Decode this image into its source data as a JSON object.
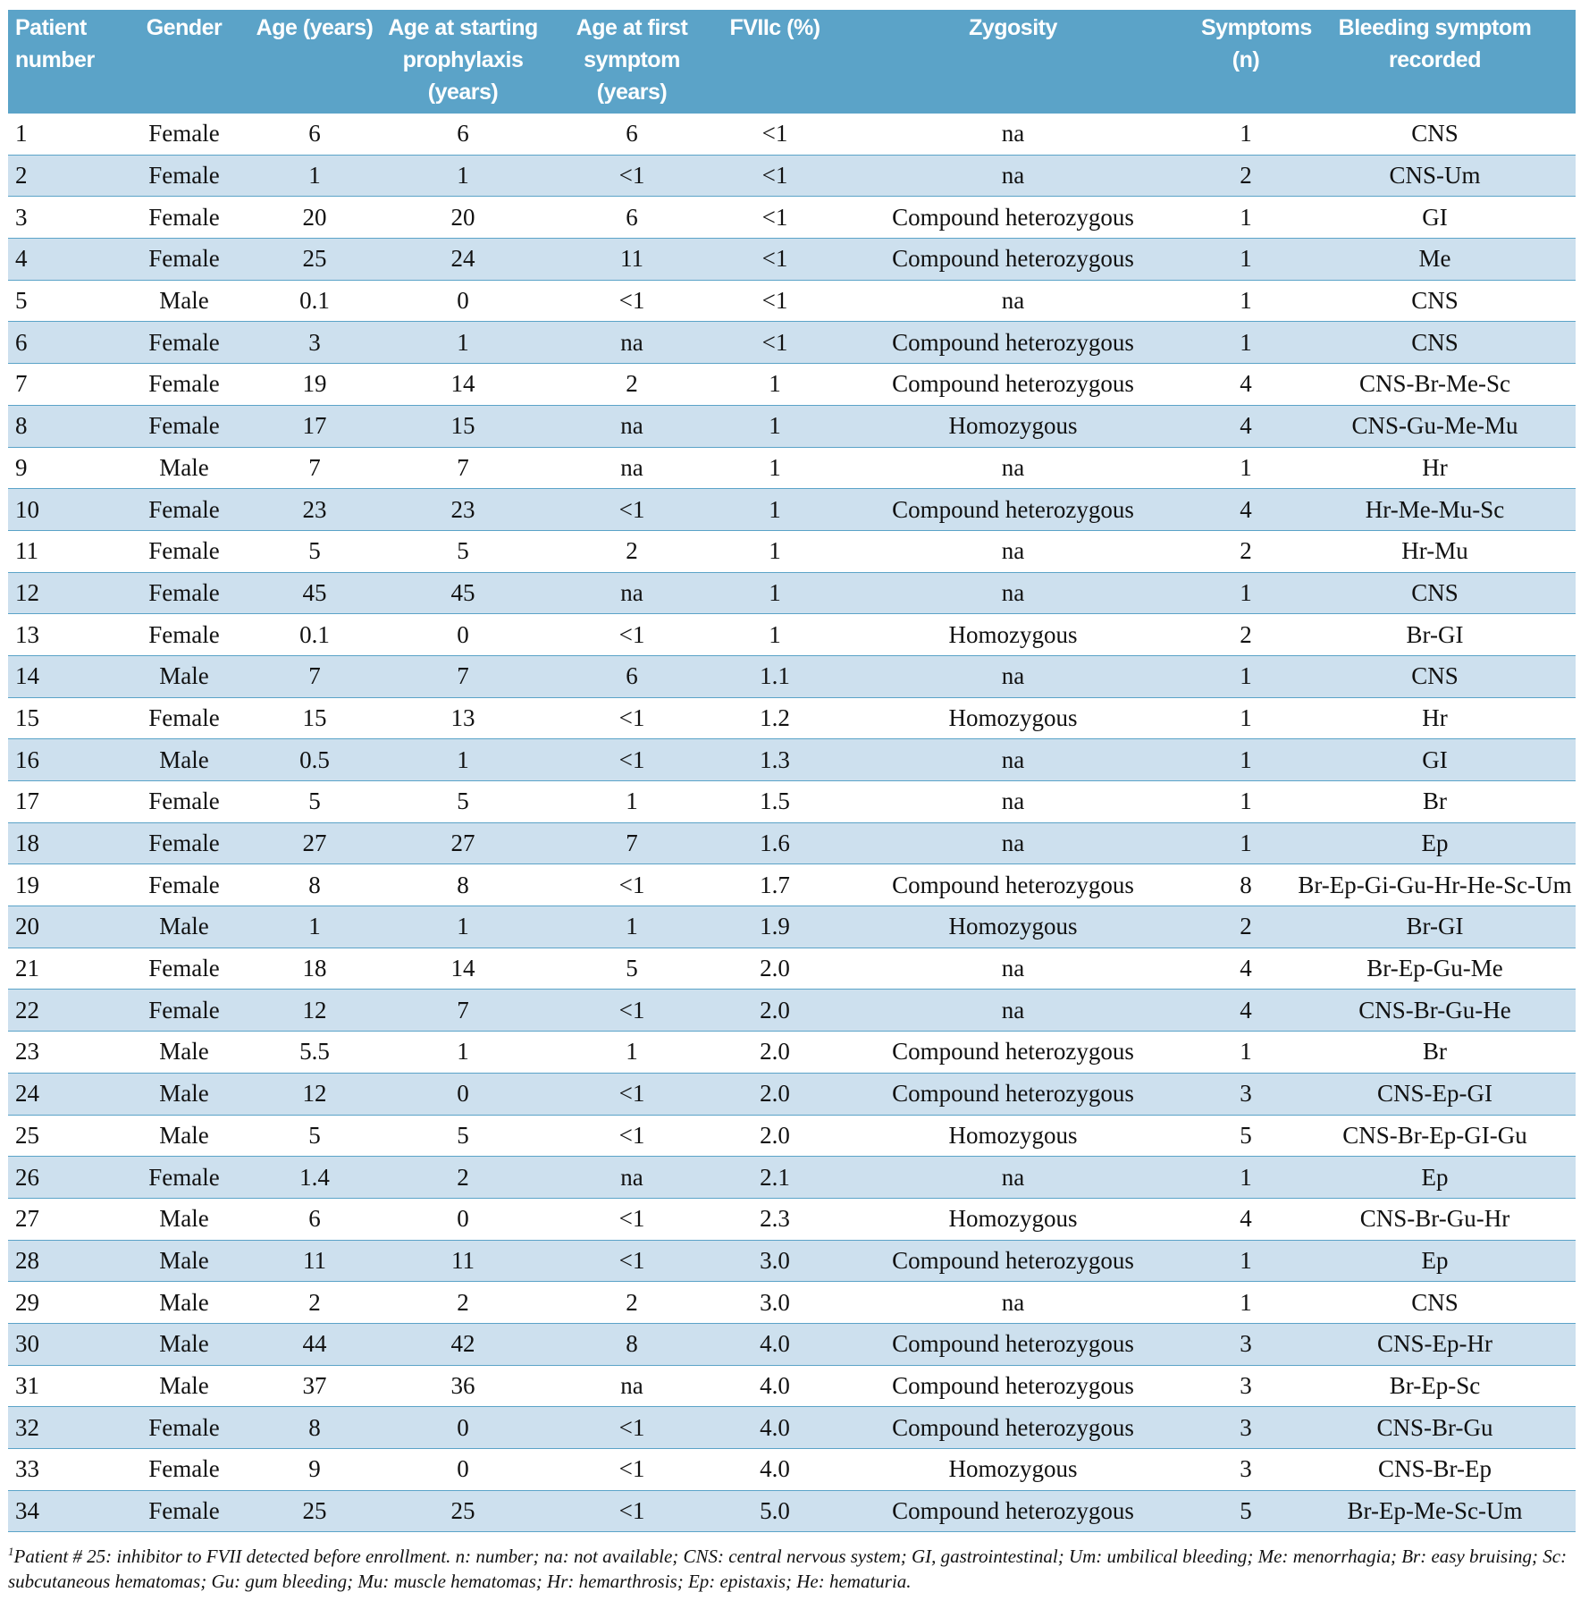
{
  "table": {
    "header": [
      "Patient number",
      "Gender",
      "Age (years)",
      "Age at starting prophylaxis (years)",
      "Age at first symptom (years)",
      "FVIIc (%)",
      "Zygosity",
      "Symptoms (n)",
      "Bleeding symptom recorded"
    ],
    "rows": [
      [
        "1",
        "Female",
        "6",
        "6",
        "6",
        "<1",
        "na",
        "1",
        "CNS"
      ],
      [
        "2",
        "Female",
        "1",
        "1",
        "<1",
        "<1",
        "na",
        "2",
        "CNS-Um"
      ],
      [
        "3",
        "Female",
        "20",
        "20",
        "6",
        "<1",
        "Compound heterozygous",
        "1",
        "GI"
      ],
      [
        "4",
        "Female",
        "25",
        "24",
        "11",
        "<1",
        "Compound heterozygous",
        "1",
        "Me"
      ],
      [
        "5",
        "Male",
        "0.1",
        "0",
        "<1",
        "<1",
        "na",
        "1",
        "CNS"
      ],
      [
        "6",
        "Female",
        "3",
        "1",
        "na",
        "<1",
        "Compound heterozygous",
        "1",
        "CNS"
      ],
      [
        "7",
        "Female",
        "19",
        "14",
        "2",
        "1",
        "Compound heterozygous",
        "4",
        "CNS-Br-Me-Sc"
      ],
      [
        "8",
        "Female",
        "17",
        "15",
        "na",
        "1",
        "Homozygous",
        "4",
        "CNS-Gu-Me-Mu"
      ],
      [
        "9",
        "Male",
        "7",
        "7",
        "na",
        "1",
        "na",
        "1",
        "Hr"
      ],
      [
        "10",
        "Female",
        "23",
        "23",
        "<1",
        "1",
        "Compound heterozygous",
        "4",
        "Hr-Me-Mu-Sc"
      ],
      [
        "11",
        "Female",
        "5",
        "5",
        "2",
        "1",
        "na",
        "2",
        "Hr-Mu"
      ],
      [
        "12",
        "Female",
        "45",
        "45",
        "na",
        "1",
        "na",
        "1",
        "CNS"
      ],
      [
        "13",
        "Female",
        "0.1",
        "0",
        "<1",
        "1",
        "Homozygous",
        "2",
        "Br-GI"
      ],
      [
        "14",
        "Male",
        "7",
        "7",
        "6",
        "1.1",
        "na",
        "1",
        "CNS"
      ],
      [
        "15",
        "Female",
        "15",
        "13",
        "<1",
        "1.2",
        "Homozygous",
        "1",
        "Hr"
      ],
      [
        "16",
        "Male",
        "0.5",
        "1",
        "<1",
        "1.3",
        "na",
        "1",
        "GI"
      ],
      [
        "17",
        "Female",
        "5",
        "5",
        "1",
        "1.5",
        "na",
        "1",
        "Br"
      ],
      [
        "18",
        "Female",
        "27",
        "27",
        "7",
        "1.6",
        "na",
        "1",
        "Ep"
      ],
      [
        "19",
        "Female",
        "8",
        "8",
        "<1",
        "1.7",
        "Compound heterozygous",
        "8",
        "Br-Ep-Gi-Gu-Hr-He-Sc-Um"
      ],
      [
        "20",
        "Male",
        "1",
        "1",
        "1",
        "1.9",
        "Homozygous",
        "2",
        "Br-GI"
      ],
      [
        "21",
        "Female",
        "18",
        "14",
        "5",
        "2.0",
        "na",
        "4",
        "Br-Ep-Gu-Me"
      ],
      [
        "22",
        "Female",
        "12",
        "7",
        "<1",
        "2.0",
        "na",
        "4",
        "CNS-Br-Gu-He"
      ],
      [
        "23",
        "Male",
        "5.5",
        "1",
        "1",
        "2.0",
        "Compound heterozygous",
        "1",
        "Br"
      ],
      [
        "24",
        "Male",
        "12",
        "0",
        "<1",
        "2.0",
        "Compound heterozygous",
        "3",
        "CNS-Ep-GI"
      ],
      [
        "25",
        "Male",
        "5",
        "5",
        "<1",
        "2.0",
        "Homozygous",
        "5",
        "CNS-Br-Ep-GI-Gu"
      ],
      [
        "26",
        "Female",
        "1.4",
        "2",
        "na",
        "2.1",
        "na",
        "1",
        "Ep"
      ],
      [
        "27",
        "Male",
        "6",
        "0",
        "<1",
        "2.3",
        "Homozygous",
        "4",
        "CNS-Br-Gu-Hr"
      ],
      [
        "28",
        "Male",
        "11",
        "11",
        "<1",
        "3.0",
        "Compound heterozygous",
        "1",
        "Ep"
      ],
      [
        "29",
        "Male",
        "2",
        "2",
        "2",
        "3.0",
        "na",
        "1",
        "CNS"
      ],
      [
        "30",
        "Male",
        "44",
        "42",
        "8",
        "4.0",
        "Compound heterozygous",
        "3",
        "CNS-Ep-Hr"
      ],
      [
        "31",
        "Male",
        "37",
        "36",
        "na",
        "4.0",
        "Compound heterozygous",
        "3",
        "Br-Ep-Sc"
      ],
      [
        "32",
        "Female",
        "8",
        "0",
        "<1",
        "4.0",
        "Compound heterozygous",
        "3",
        "CNS-Br-Gu"
      ],
      [
        "33",
        "Female",
        "9",
        "0",
        "<1",
        "4.0",
        "Homozygous",
        "3",
        "CNS-Br-Ep"
      ],
      [
        "34",
        "Female",
        "25",
        "25",
        "<1",
        "5.0",
        "Compound heterozygous",
        "5",
        "Br-Ep-Me-Sc-Um"
      ]
    ]
  },
  "footnote": {
    "marker": "1",
    "text": "Patient # 25: inhibitor to FVII detected before enrollment. n: number; na: not available; CNS: central nervous system; GI, gastrointestinal; Um: umbilical bleeding; Me: menorrhagia; Br: easy bruising; Sc: subcutaneous hematomas; Gu: gum bleeding; Mu: muscle hematomas; Hr: hemarthrosis; Ep: epistaxis; He: hematuria."
  }
}
